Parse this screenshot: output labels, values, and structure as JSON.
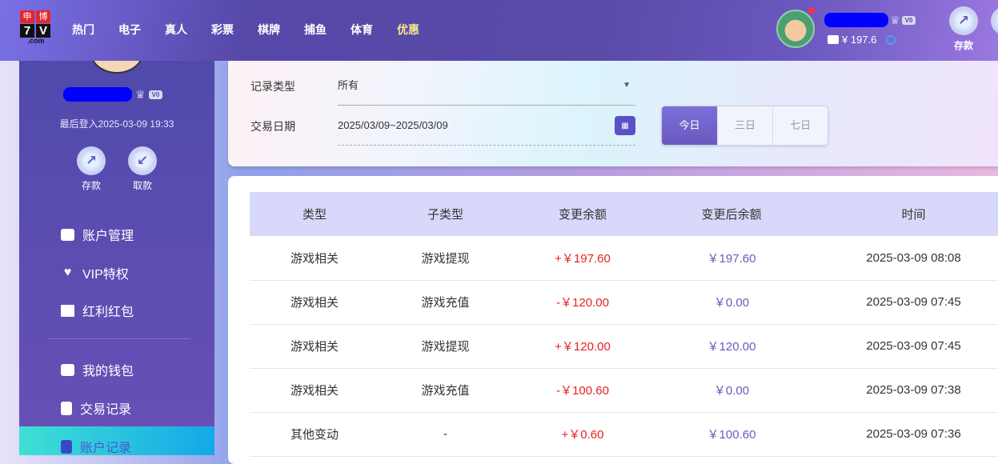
{
  "header": {
    "logo": {
      "top": [
        "申",
        "博"
      ],
      "mid": [
        "7",
        "V"
      ],
      "bottom": ".com"
    },
    "nav": [
      "热门",
      "电子",
      "真人",
      "彩票",
      "棋牌",
      "捕鱼",
      "体育",
      "优惠"
    ],
    "vip_level": "V0",
    "balance": "¥ 197.6",
    "deposit_label": "存款"
  },
  "sidebar": {
    "vip_level": "V0",
    "last_login": "最后登入2025-03-09 19:33",
    "deposit_label": "存款",
    "withdraw_label": "取款",
    "items": [
      {
        "label": "账户管理",
        "icon": "card-icon"
      },
      {
        "label": "VIP特权",
        "icon": "diamond-icon"
      },
      {
        "label": "红利红包",
        "icon": "envelope-icon"
      },
      {
        "label": "我的钱包",
        "icon": "wallet-icon"
      },
      {
        "label": "交易记录",
        "icon": "document-icon"
      },
      {
        "label": "账户记录",
        "icon": "document-icon",
        "active": true
      }
    ]
  },
  "filter": {
    "type_label": "记录类型",
    "type_value": "所有",
    "date_label": "交易日期",
    "date_value": "2025/03/09~2025/03/09",
    "ranges": [
      "今日",
      "三日",
      "七日"
    ],
    "selected_range": "今日"
  },
  "table": {
    "columns": [
      "类型",
      "子类型",
      "变更余额",
      "变更后余额",
      "时间"
    ],
    "rows": [
      [
        "游戏相关",
        "游戏提现",
        "+￥197.60",
        "￥197.60",
        "2025-03-09 08:08"
      ],
      [
        "游戏相关",
        "游戏充值",
        "-￥120.00",
        "￥0.00",
        "2025-03-09 07:45"
      ],
      [
        "游戏相关",
        "游戏提现",
        "+￥120.00",
        "￥120.00",
        "2025-03-09 07:45"
      ],
      [
        "游戏相关",
        "游戏充值",
        "-￥100.60",
        "￥0.00",
        "2025-03-09 07:38"
      ],
      [
        "其他变动",
        "-",
        "+￥0.60",
        "￥100.60",
        "2025-03-09 07:36"
      ]
    ]
  },
  "colors": {
    "accent": "#6a58c0",
    "amount": "#e82020",
    "active_menu": "#14a8e8"
  }
}
